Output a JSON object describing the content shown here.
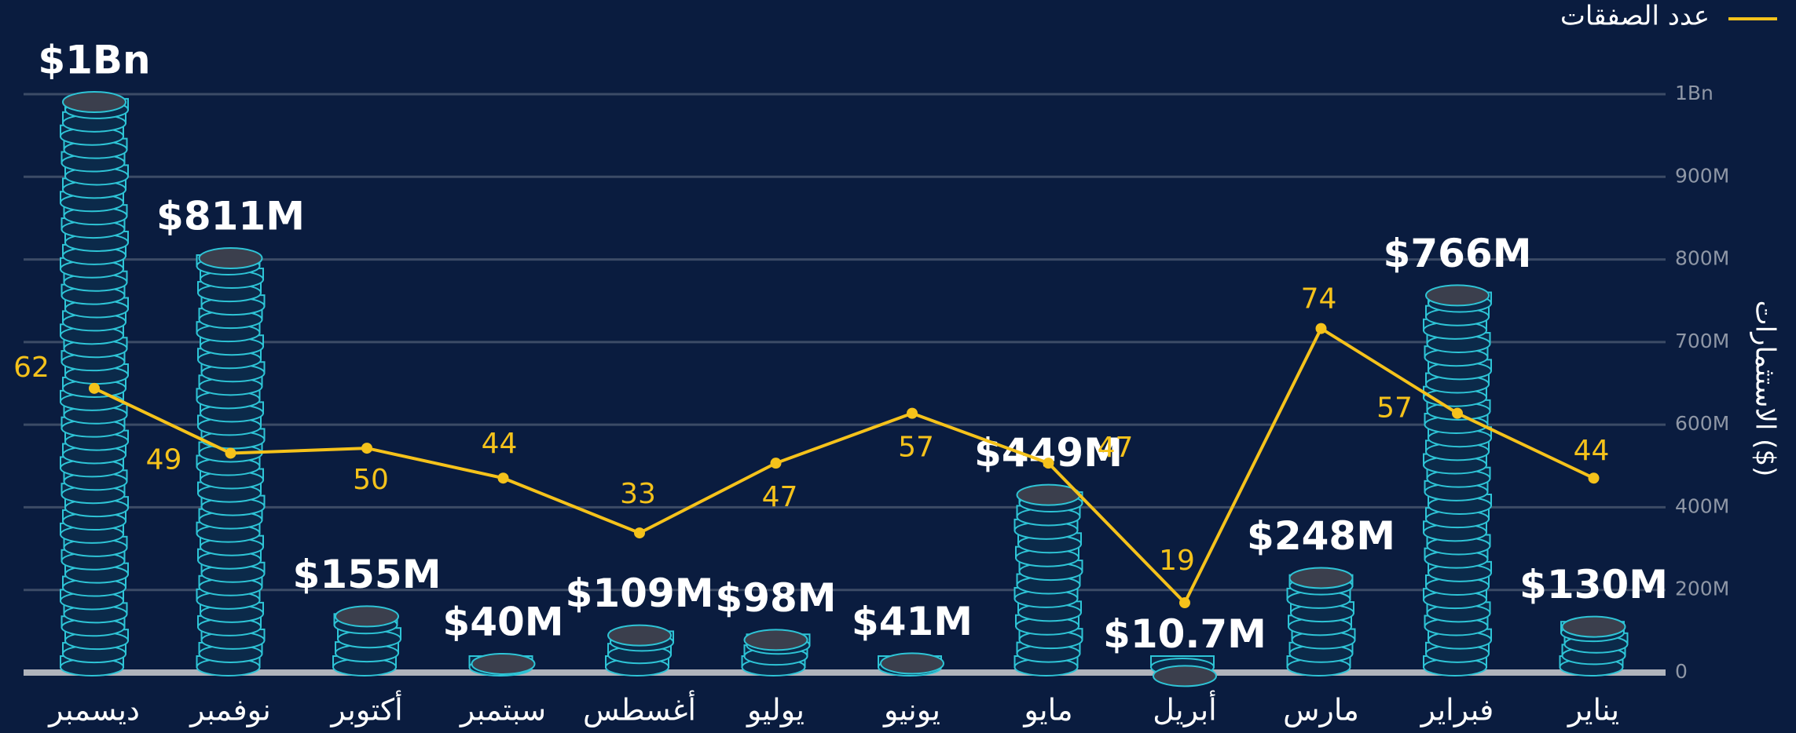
{
  "chart_data": {
    "type": "bar",
    "categories": [
      "ديسمبر",
      "نوفمبر",
      "أكتوبر",
      "سبتمبر",
      "أغسطس",
      "يوليو",
      "يونيو",
      "مايو",
      "أبريل",
      "مارس",
      "فبراير",
      "يناير"
    ],
    "y_label": "الاستثمارات ($)",
    "ylim": [
      0,
      1000
    ],
    "yticks": [
      0,
      {
        "value": 200,
        "label": "200M"
      },
      {
        "value": 400,
        "label": "400M"
      },
      {
        "value": 600,
        "label": "600M"
      },
      {
        "value": 700,
        "label": "700M"
      },
      {
        "value": 800,
        "label": "800M"
      },
      {
        "value": 900,
        "label": "900M"
      },
      {
        "value": 1000,
        "label": "1Bn"
      }
    ],
    "y2lim": [
      5,
      121
    ],
    "grid": true,
    "legend": "top-right",
    "series": [
      {
        "type": "bar",
        "color": "#2ec4d6",
        "values": [
          1000,
          811,
          155,
          40,
          109,
          98,
          41,
          449,
          10.7,
          248,
          766,
          130
        ],
        "value_labels": [
          "$1Bn",
          "$811M",
          "$155M",
          "$40M",
          "$109M",
          "$98M",
          "$41M",
          "$449M",
          "$10.7M",
          "$248M",
          "$766M",
          "$130M"
        ]
      },
      {
        "type": "line",
        "name": "عدد الصفقات",
        "axis": "y2",
        "color": "#f5c21b",
        "values": [
          62,
          49,
          50,
          44,
          33,
          47,
          57,
          47,
          19,
          74,
          57,
          44
        ]
      }
    ]
  }
}
